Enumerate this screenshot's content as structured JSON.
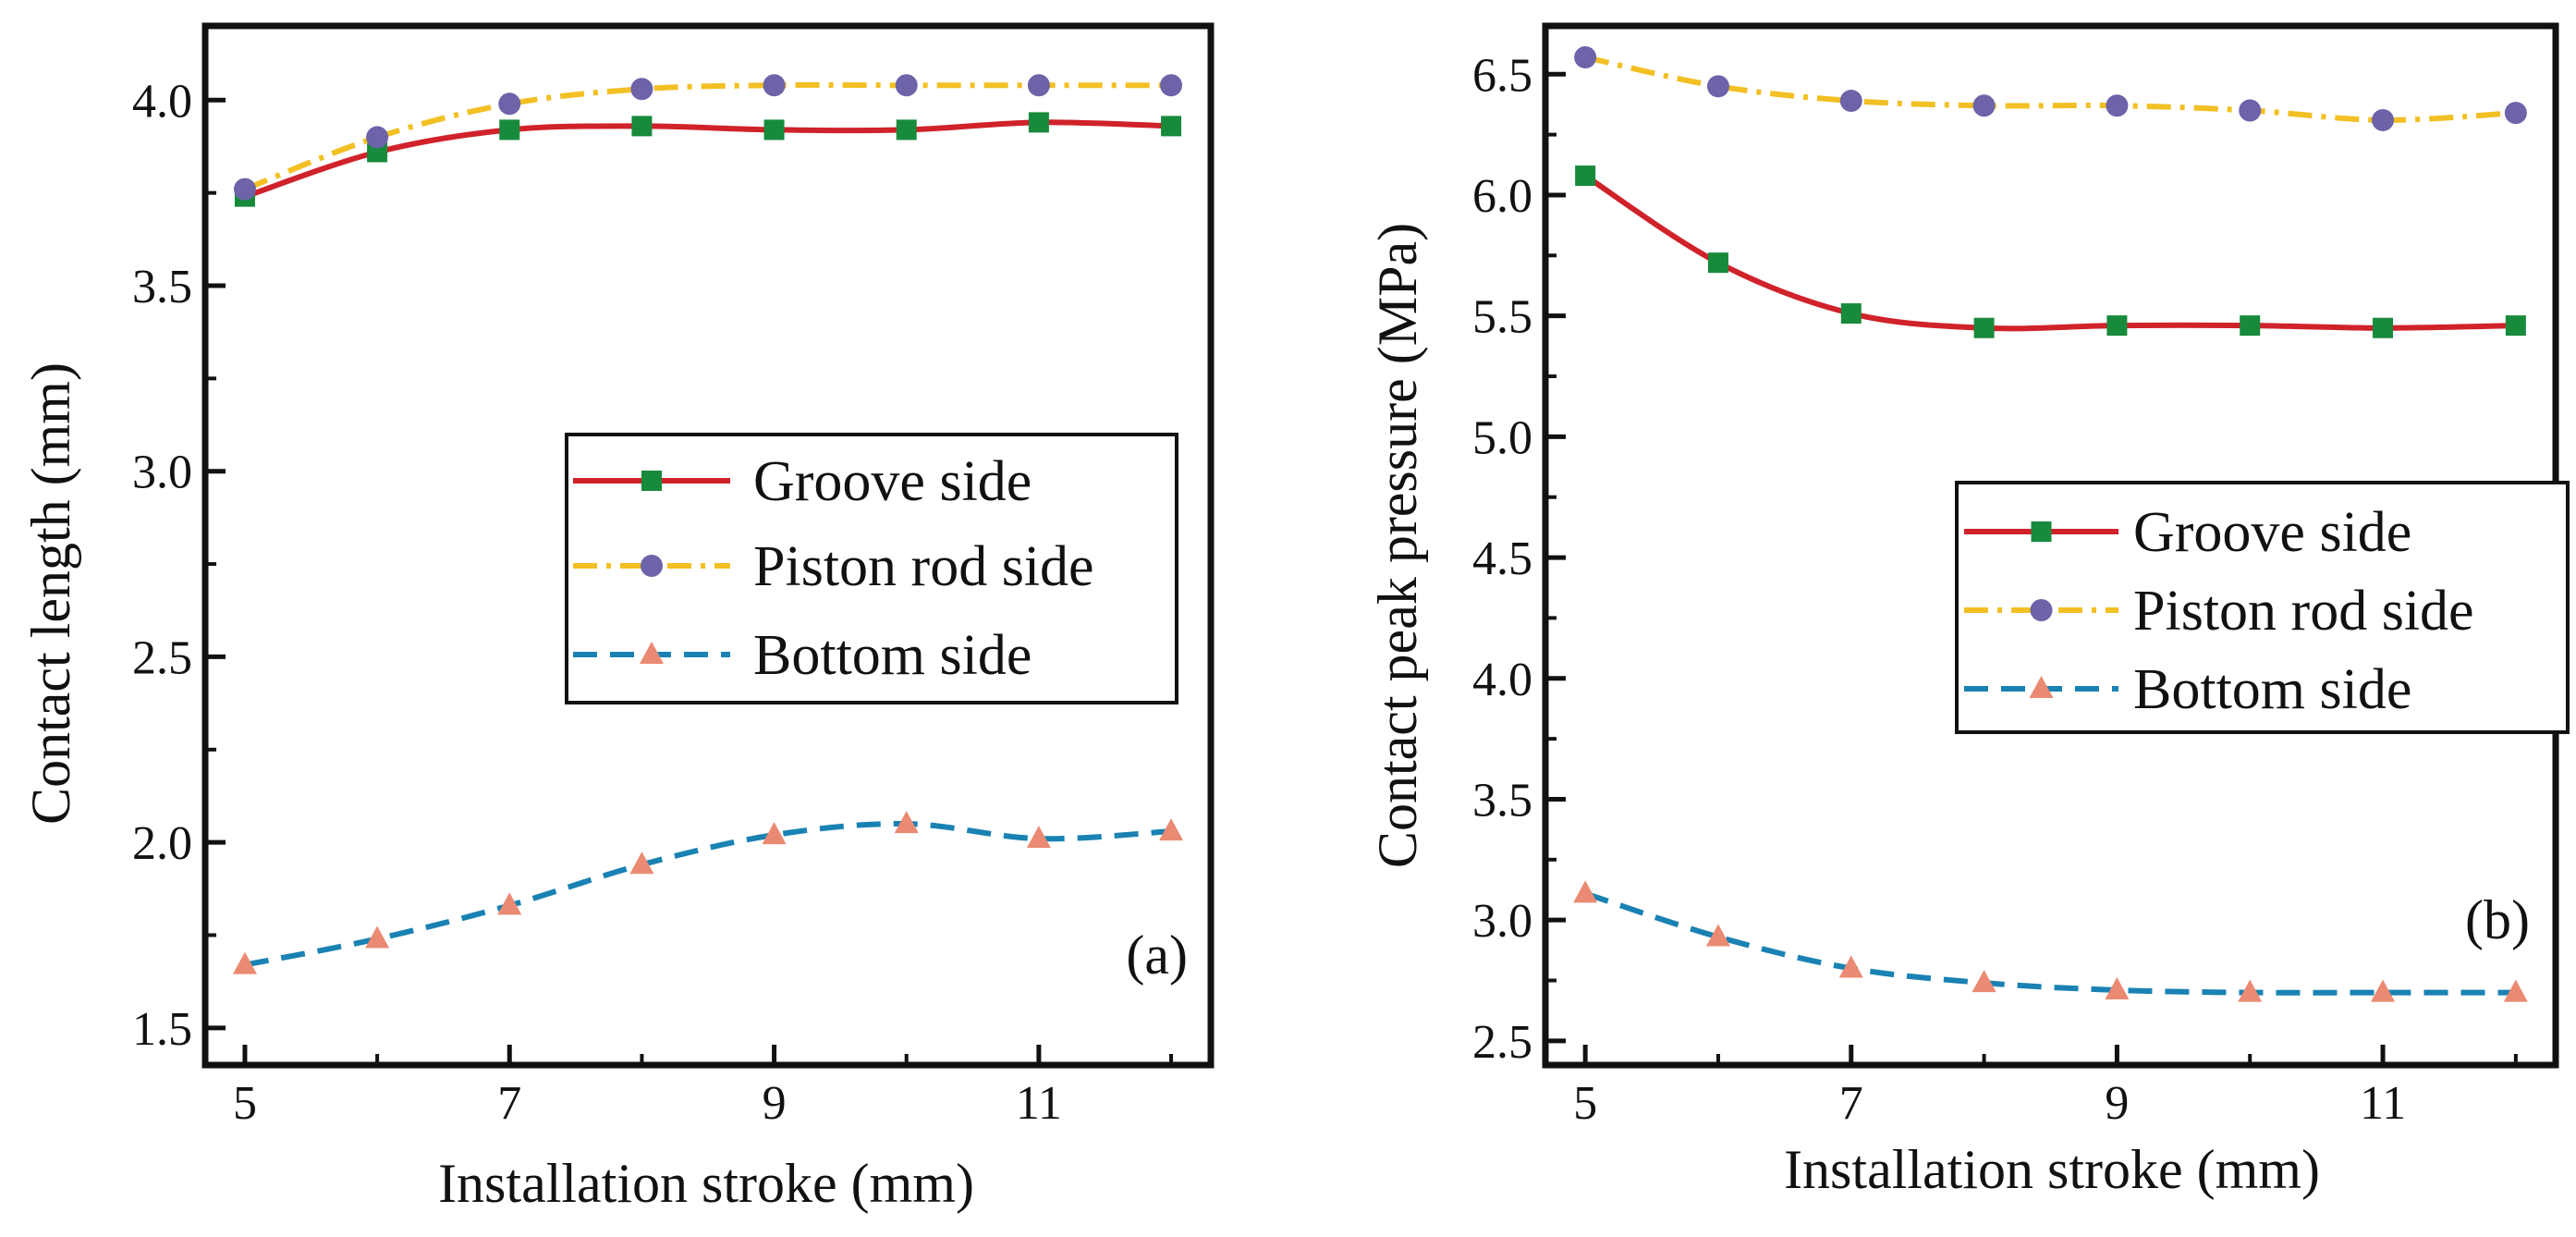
{
  "colors": {
    "groove": "#d0222a",
    "piston": "#f2c024",
    "bottom": "#1a82b3",
    "groove_marker": "#178a3c",
    "piston_marker": "#6d63a8",
    "bottom_marker": "#ea8a72",
    "axis": "#111111"
  },
  "chart_data": [
    {
      "type": "line",
      "panel_label": "(a)",
      "xlabel": "Installation stroke (mm)",
      "ylabel": "Contact length (mm)",
      "xlim": [
        4.7,
        12.3
      ],
      "ylim": [
        1.4,
        4.2
      ],
      "xticks": [
        "5",
        "7",
        "9",
        "11"
      ],
      "yticks": [
        "1.5",
        "2.0",
        "2.5",
        "3.0",
        "3.5",
        "4.0"
      ],
      "legend_position": "center-right",
      "x": [
        5,
        6,
        7,
        8,
        9,
        10,
        11,
        12
      ],
      "series": [
        {
          "name": "Groove side",
          "marker": "square",
          "dash": "solid",
          "values": [
            3.74,
            3.86,
            3.92,
            3.93,
            3.92,
            3.92,
            3.94,
            3.93
          ]
        },
        {
          "name": "Piston rod side",
          "marker": "circle",
          "dash": "dashdot",
          "values": [
            3.76,
            3.9,
            3.99,
            4.03,
            4.04,
            4.04,
            4.04,
            4.04
          ]
        },
        {
          "name": "Bottom side",
          "marker": "triangle",
          "dash": "dashed",
          "values": [
            1.67,
            1.74,
            1.83,
            1.94,
            2.02,
            2.05,
            2.01,
            2.03
          ]
        }
      ]
    },
    {
      "type": "line",
      "panel_label": "(b)",
      "xlabel": "Installation stroke (mm)",
      "ylabel": "Contact peak pressure (MPa)",
      "xlim": [
        4.7,
        12.3
      ],
      "ylim": [
        2.4,
        6.7
      ],
      "xticks": [
        "5",
        "7",
        "9",
        "11"
      ],
      "yticks": [
        "2.5",
        "3.0",
        "3.5",
        "4.0",
        "4.5",
        "5.0",
        "5.5",
        "6.0",
        "6.5"
      ],
      "legend_position": "center-right",
      "x": [
        5,
        6,
        7,
        8,
        9,
        10,
        11,
        12
      ],
      "series": [
        {
          "name": "Groove side",
          "marker": "square",
          "dash": "solid",
          "values": [
            6.08,
            5.72,
            5.51,
            5.45,
            5.46,
            5.46,
            5.45,
            5.46
          ]
        },
        {
          "name": "Piston rod side",
          "marker": "circle",
          "dash": "dashdot",
          "values": [
            6.57,
            6.45,
            6.39,
            6.37,
            6.37,
            6.35,
            6.31,
            6.34
          ]
        },
        {
          "name": "Bottom side",
          "marker": "triangle",
          "dash": "dashed",
          "values": [
            3.11,
            2.93,
            2.8,
            2.74,
            2.71,
            2.7,
            2.7,
            2.7
          ]
        }
      ]
    }
  ]
}
